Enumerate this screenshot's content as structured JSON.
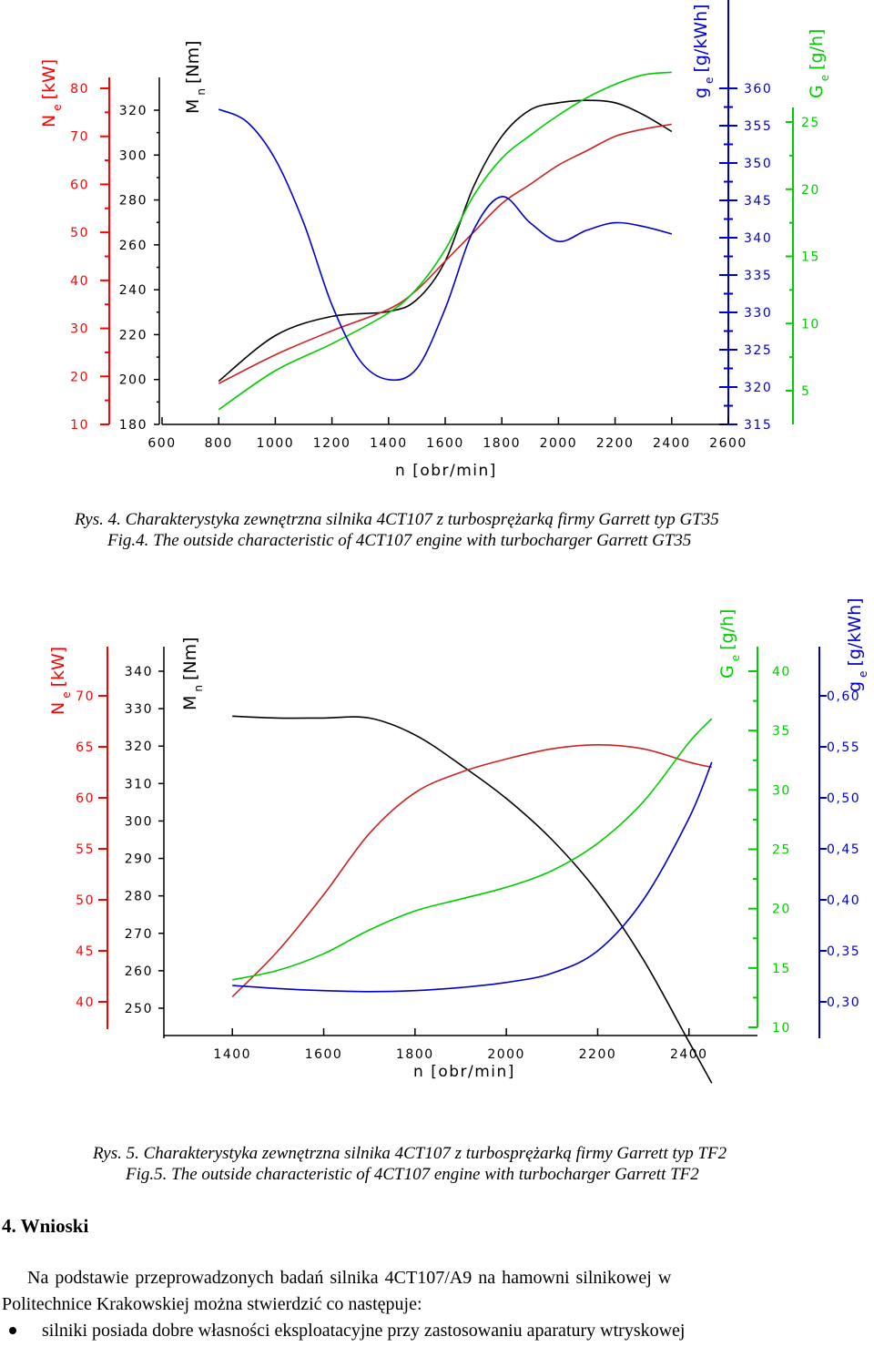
{
  "colors": {
    "ne": "#ff0000",
    "mn": "#000000",
    "ge": "#0000cc",
    "Ge": "#00cc00",
    "curve_red": "#cc2222"
  },
  "figure1": {
    "caption_pl": "Rys. 4. Charakterystyka zewnętrzna silnika 4CT107 z turbosprężarką firmy Garrett typ GT35",
    "caption_en": "Fig.4. The outside characteristic of  4CT107 engine with turbocharger Garrett  GT35",
    "axis_labels": {
      "ne_main": "N",
      "ne_sub": "e",
      "ne_unit": "[kW]",
      "mn_main": "M",
      "mn_sub": "n",
      "mn_unit": "[Nm]",
      "ge_main": "g",
      "ge_sub": "e",
      "ge_unit": "[g/kWh]",
      "Ge_main": "G",
      "Ge_sub": "e",
      "Ge_unit": "[g/h]",
      "x": "n [obr/min]"
    }
  },
  "figure2": {
    "caption_pl": "Rys. 5. Charakterystyka zewnętrzna silnika 4CT107 z turbosprężarką firmy Garrett typ TF2",
    "caption_en": "Fig.5. The outside characteristic of  4CT107 engine with turbocharger Garrett TF2",
    "axis_labels": {
      "ne_main": "N",
      "ne_sub": "e",
      "ne_unit": "[kW]",
      "mn_main": "M",
      "mn_sub": "n",
      "mn_unit": "[Nm]",
      "ge_main": "g",
      "ge_sub": "e",
      "ge_unit": "[g/kWh]",
      "Ge_main": "G",
      "Ge_sub": "e",
      "Ge_unit": "[g/h]",
      "x": "n [obr/min]"
    }
  },
  "text": {
    "section_heading": "4. Wnioski",
    "paragraph_line1": "Na podstawie przeprowadzonych badań silnika 4CT107/A9 na hamowni silnikowej w",
    "paragraph_line2": "Politechnice Krakowskiej można stwierdzić co następuje:",
    "bullet": "silniki posiada dobre własności eksploatacyjne przy zastosowaniu aparatury wtryskowej"
  },
  "chart_data": [
    {
      "type": "line",
      "x_ticks": [
        600,
        800,
        1000,
        1200,
        1400,
        1600,
        1800,
        2000,
        2200,
        2400,
        2600
      ],
      "xlim": [
        600,
        2600
      ],
      "axes": {
        "ne": {
          "ticks": [
            "10",
            "20",
            "30",
            "40",
            "50",
            "60",
            "70",
            "80"
          ],
          "ylim": [
            10,
            80
          ]
        },
        "mn": {
          "ticks": [
            "180",
            "200",
            "220",
            "240",
            "260",
            "280",
            "300",
            "320"
          ],
          "ylim": [
            180,
            320
          ]
        },
        "ge": {
          "ticks": [
            "315",
            "320",
            "325",
            "330",
            "335",
            "340",
            "345",
            "350",
            "355",
            "360"
          ],
          "ylim": [
            315,
            360
          ]
        },
        "Ge": {
          "ticks": [
            "5",
            "10",
            "15",
            "20",
            "25"
          ],
          "ylim": [
            2.5,
            27.5
          ]
        }
      },
      "series": [
        {
          "axis": "mn",
          "color": "mn",
          "x": [
            800,
            1000,
            1200,
            1400,
            1500,
            1600,
            1700,
            1800,
            1900,
            2000,
            2100,
            2200,
            2300,
            2400
          ],
          "y": [
            198,
            217,
            225,
            227,
            232,
            248,
            279,
            300,
            311,
            314,
            315,
            314,
            309,
            302
          ]
        },
        {
          "axis": "ne",
          "color": "curve_red",
          "x": [
            800,
            1000,
            1200,
            1400,
            1500,
            1600,
            1700,
            1800,
            1900,
            2000,
            2100,
            2200,
            2300,
            2400
          ],
          "y": [
            18.5,
            24.5,
            29.5,
            34,
            38,
            44,
            50,
            56,
            60,
            64,
            67,
            70,
            71.5,
            72.5
          ]
        },
        {
          "axis": "Ge",
          "color": "Ge",
          "x": [
            800,
            1000,
            1200,
            1400,
            1500,
            1600,
            1700,
            1800,
            1900,
            2000,
            2100,
            2200,
            2300,
            2400
          ],
          "y": [
            3.6,
            6.5,
            8.5,
            10.8,
            12.6,
            15.5,
            19.5,
            22.3,
            24.0,
            25.5,
            26.8,
            27.8,
            28.5,
            28.7
          ]
        },
        {
          "axis": "ge",
          "color": "ge",
          "x": [
            800,
            900,
            1000,
            1100,
            1200,
            1300,
            1400,
            1500,
            1600,
            1700,
            1800,
            1900,
            2000,
            2100,
            2200,
            2300,
            2400
          ],
          "y": [
            357.2,
            355.5,
            350.5,
            342.0,
            331.0,
            323.5,
            321.0,
            322.5,
            330.5,
            341.0,
            345.5,
            342.0,
            339.5,
            341.0,
            342.0,
            341.5,
            340.5
          ]
        }
      ]
    },
    {
      "type": "line",
      "x_ticks": [
        1400,
        1600,
        1800,
        2000,
        2200,
        2400
      ],
      "xlim": [
        1250,
        2550
      ],
      "axes": {
        "ne": {
          "ticks": [
            "40",
            "45",
            "50",
            "55",
            "60",
            "65",
            "70"
          ],
          "ylim": [
            40,
            70
          ]
        },
        "mn": {
          "ticks": [
            "250",
            "260",
            "270",
            "280",
            "290",
            "300",
            "310",
            "320",
            "330",
            "340"
          ],
          "ylim": [
            250,
            340
          ]
        },
        "Ge": {
          "ticks": [
            "10",
            "15",
            "20",
            "25",
            "30",
            "35",
            "40"
          ],
          "ylim": [
            10,
            40
          ]
        },
        "ge": {
          "ticks": [
            "0,30",
            "0,35",
            "0,40",
            "0,45",
            "0,50",
            "0,55",
            "0,60"
          ],
          "ylim": [
            0.3,
            0.6
          ]
        }
      },
      "series": [
        {
          "axis": "mn",
          "color": "mn",
          "x": [
            1400,
            1500,
            1600,
            1700,
            1800,
            1900,
            2000,
            2100,
            2200,
            2300,
            2400,
            2450
          ],
          "y": [
            328,
            327.5,
            327.5,
            327.5,
            323,
            315,
            306,
            295,
            281,
            263,
            241,
            230
          ]
        },
        {
          "axis": "ne",
          "color": "curve_red",
          "x": [
            1400,
            1500,
            1600,
            1700,
            1800,
            1900,
            2000,
            2100,
            2200,
            2300,
            2400,
            2450
          ],
          "y": [
            40.5,
            45,
            50.5,
            56.5,
            60.5,
            62.5,
            63.8,
            64.8,
            65.2,
            64.8,
            63.5,
            63
          ]
        },
        {
          "axis": "Ge",
          "color": "Ge",
          "x": [
            1400,
            1500,
            1600,
            1700,
            1800,
            1900,
            2000,
            2100,
            2200,
            2300,
            2400,
            2450
          ],
          "y": [
            14,
            14.8,
            16.2,
            18.2,
            19.8,
            20.8,
            21.8,
            23.2,
            25.5,
            29.0,
            34.0,
            36.0
          ]
        },
        {
          "axis": "ge",
          "color": "ge",
          "x": [
            1400,
            1500,
            1600,
            1700,
            1800,
            1900,
            2000,
            2100,
            2200,
            2300,
            2400,
            2450
          ],
          "y": [
            0.316,
            0.313,
            0.311,
            0.31,
            0.311,
            0.314,
            0.319,
            0.328,
            0.35,
            0.4,
            0.48,
            0.535
          ]
        }
      ]
    }
  ]
}
